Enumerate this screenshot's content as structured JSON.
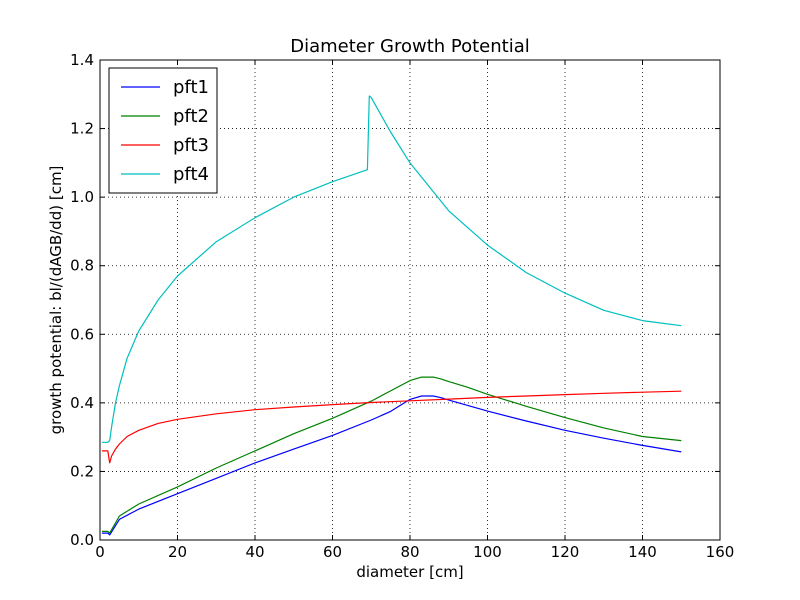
{
  "chart_data": {
    "type": "line",
    "title": "Diameter Growth Potential",
    "xlabel": "diameter [cm]",
    "ylabel": "growth potential: bl/(dAGB/dd) [cm]",
    "xlim": [
      0,
      160
    ],
    "ylim": [
      0.0,
      1.4
    ],
    "xticks": [
      0,
      20,
      40,
      60,
      80,
      100,
      120,
      140,
      160
    ],
    "xtick_labels": [
      "0",
      "20",
      "40",
      "60",
      "80",
      "100",
      "120",
      "140",
      "160"
    ],
    "yticks": [
      0.0,
      0.2,
      0.4,
      0.6,
      0.8,
      1.0,
      1.2,
      1.4
    ],
    "ytick_labels": [
      "0.0",
      "0.2",
      "0.4",
      "0.6",
      "0.8",
      "1.0",
      "1.2",
      "1.4"
    ],
    "grid": true,
    "legend_position": "top-left",
    "series": [
      {
        "name": "pft1",
        "color": "#0000ff",
        "x": [
          0.5,
          2.0,
          2.5,
          5,
          10,
          20,
          30,
          40,
          50,
          60,
          70,
          75,
          80,
          83,
          86,
          88,
          90,
          95,
          100,
          110,
          120,
          130,
          140,
          150
        ],
        "y": [
          0.02,
          0.02,
          0.015,
          0.06,
          0.09,
          0.135,
          0.18,
          0.225,
          0.265,
          0.305,
          0.35,
          0.375,
          0.41,
          0.42,
          0.42,
          0.415,
          0.408,
          0.392,
          0.376,
          0.347,
          0.32,
          0.297,
          0.276,
          0.257
        ]
      },
      {
        "name": "pft2",
        "color": "#008000",
        "x": [
          0.5,
          2.0,
          2.5,
          5,
          10,
          20,
          30,
          40,
          50,
          60,
          70,
          75,
          80,
          83,
          86,
          88,
          90,
          95,
          100,
          110,
          120,
          130,
          140,
          150
        ],
        "y": [
          0.025,
          0.025,
          0.02,
          0.07,
          0.105,
          0.155,
          0.21,
          0.26,
          0.31,
          0.355,
          0.405,
          0.435,
          0.465,
          0.475,
          0.475,
          0.47,
          0.462,
          0.445,
          0.425,
          0.39,
          0.357,
          0.327,
          0.302,
          0.29
        ]
      },
      {
        "name": "pft3",
        "color": "#ff0000",
        "x": [
          0.5,
          2.0,
          2.5,
          3,
          4,
          5,
          7,
          10,
          15,
          20,
          30,
          40,
          50,
          60,
          70,
          80,
          90,
          100,
          110,
          120,
          130,
          140,
          150
        ],
        "y": [
          0.26,
          0.26,
          0.225,
          0.245,
          0.265,
          0.28,
          0.302,
          0.32,
          0.34,
          0.352,
          0.368,
          0.38,
          0.388,
          0.395,
          0.401,
          0.406,
          0.411,
          0.416,
          0.42,
          0.424,
          0.428,
          0.431,
          0.434
        ]
      },
      {
        "name": "pft4",
        "color": "#00bfbf",
        "x": [
          0.5,
          2.0,
          2.5,
          3,
          4,
          5,
          7,
          10,
          15,
          20,
          30,
          40,
          50,
          60,
          69,
          69.5,
          70,
          75,
          80,
          90,
          100,
          110,
          120,
          130,
          140,
          150
        ],
        "y": [
          0.285,
          0.285,
          0.29,
          0.33,
          0.4,
          0.45,
          0.53,
          0.61,
          0.7,
          0.77,
          0.87,
          0.94,
          1.0,
          1.045,
          1.08,
          1.295,
          1.29,
          1.19,
          1.1,
          0.96,
          0.86,
          0.78,
          0.72,
          0.67,
          0.64,
          0.625
        ]
      }
    ]
  }
}
